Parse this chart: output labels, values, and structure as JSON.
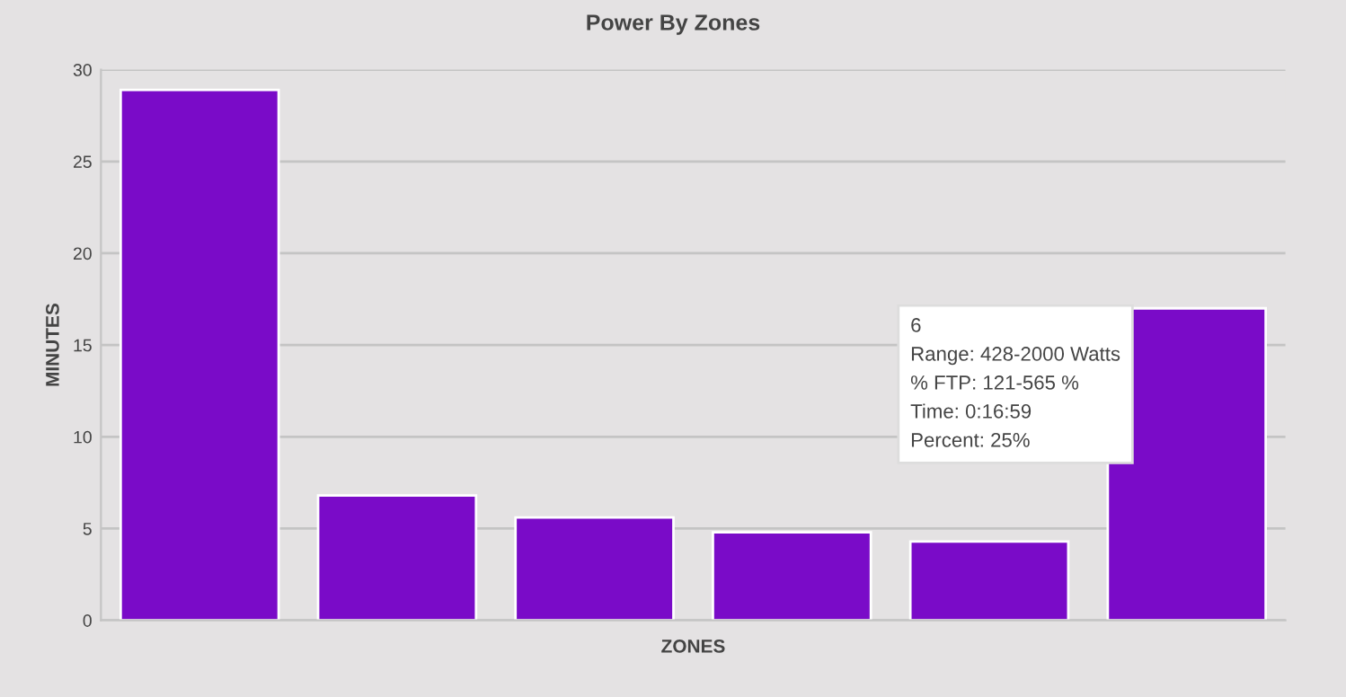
{
  "chart_data": {
    "type": "bar",
    "title": "Power By Zones",
    "xlabel": "ZONES",
    "ylabel": "MINUTES",
    "categories": [
      null,
      null,
      null,
      null,
      null,
      null
    ],
    "series": [
      {
        "color": "#7a0bc8",
        "values": [
          28.9,
          6.8,
          5.6,
          4.8,
          4.3,
          17.0
        ]
      }
    ],
    "ylim": [
      0,
      30
    ],
    "yticks": [
      0,
      5,
      10,
      15,
      20,
      25,
      30
    ],
    "grid": "y",
    "annotations": [
      "6\nRange: 428-2000 Watts\n% FTP: 121-565 %\nTime: 0:16:59\nPercent: 25%"
    ]
  }
}
